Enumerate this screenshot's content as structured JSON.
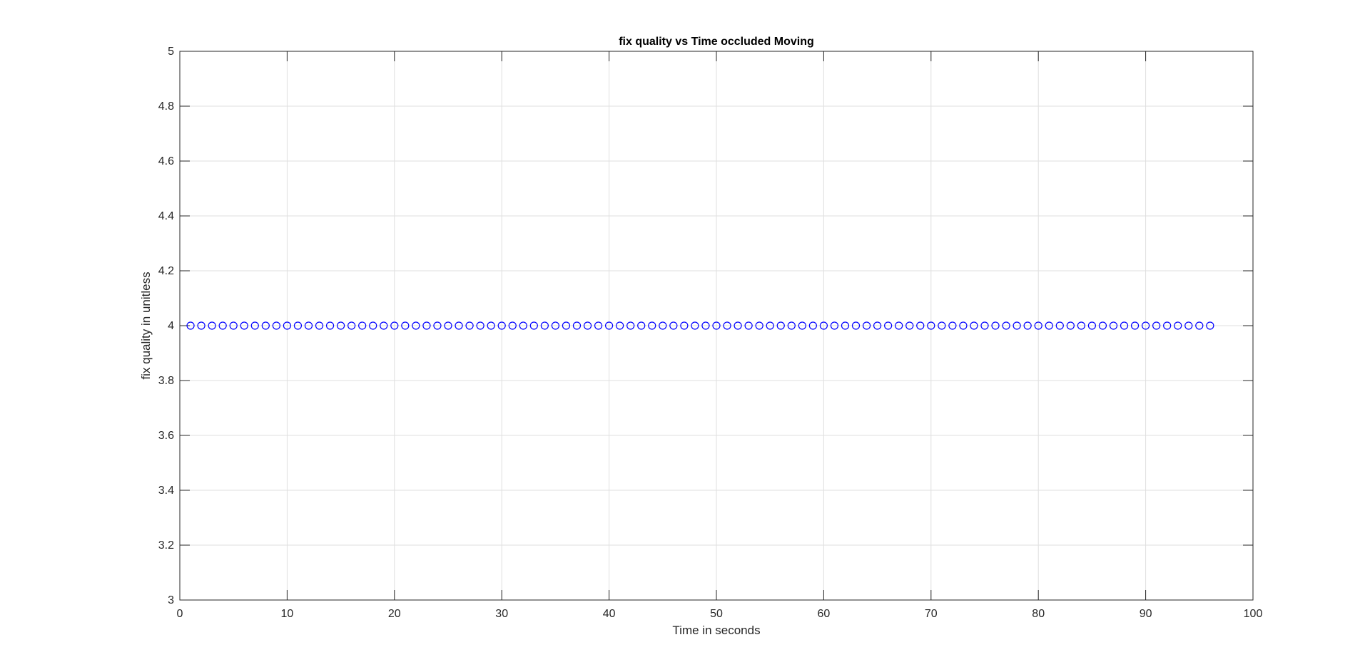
{
  "chart_data": {
    "type": "scatter",
    "title": "fix quality vs Time occluded Moving",
    "xlabel": "Time in seconds",
    "ylabel": "fix quality in unitless",
    "xlim": [
      0,
      100
    ],
    "ylim": [
      3,
      5
    ],
    "xticks": [
      0,
      10,
      20,
      30,
      40,
      50,
      60,
      70,
      80,
      90,
      100
    ],
    "yticks": [
      3,
      3.2,
      3.4,
      3.6,
      3.8,
      4,
      4.2,
      4.4,
      4.6,
      4.8,
      5
    ],
    "grid": true,
    "marker": "circle-open",
    "marker_color": "#0000ff",
    "series": [
      {
        "x": [
          1,
          2,
          3,
          4,
          5,
          6,
          7,
          8,
          9,
          10,
          11,
          12,
          13,
          14,
          15,
          16,
          17,
          18,
          19,
          20,
          21,
          22,
          23,
          24,
          25,
          26,
          27,
          28,
          29,
          30,
          31,
          32,
          33,
          34,
          35,
          36,
          37,
          38,
          39,
          40,
          41,
          42,
          43,
          44,
          45,
          46,
          47,
          48,
          49,
          50,
          51,
          52,
          53,
          54,
          55,
          56,
          57,
          58,
          59,
          60,
          61,
          62,
          63,
          64,
          65,
          66,
          67,
          68,
          69,
          70,
          71,
          72,
          73,
          74,
          75,
          76,
          77,
          78,
          79,
          80,
          81,
          82,
          83,
          84,
          85,
          86,
          87,
          88,
          89,
          90,
          91,
          92,
          93,
          94,
          95,
          96
        ],
        "y": [
          4,
          4,
          4,
          4,
          4,
          4,
          4,
          4,
          4,
          4,
          4,
          4,
          4,
          4,
          4,
          4,
          4,
          4,
          4,
          4,
          4,
          4,
          4,
          4,
          4,
          4,
          4,
          4,
          4,
          4,
          4,
          4,
          4,
          4,
          4,
          4,
          4,
          4,
          4,
          4,
          4,
          4,
          4,
          4,
          4,
          4,
          4,
          4,
          4,
          4,
          4,
          4,
          4,
          4,
          4,
          4,
          4,
          4,
          4,
          4,
          4,
          4,
          4,
          4,
          4,
          4,
          4,
          4,
          4,
          4,
          4,
          4,
          4,
          4,
          4,
          4,
          4,
          4,
          4,
          4,
          4,
          4,
          4,
          4,
          4,
          4,
          4,
          4,
          4,
          4,
          4,
          4,
          4,
          4,
          4,
          4
        ]
      }
    ]
  }
}
